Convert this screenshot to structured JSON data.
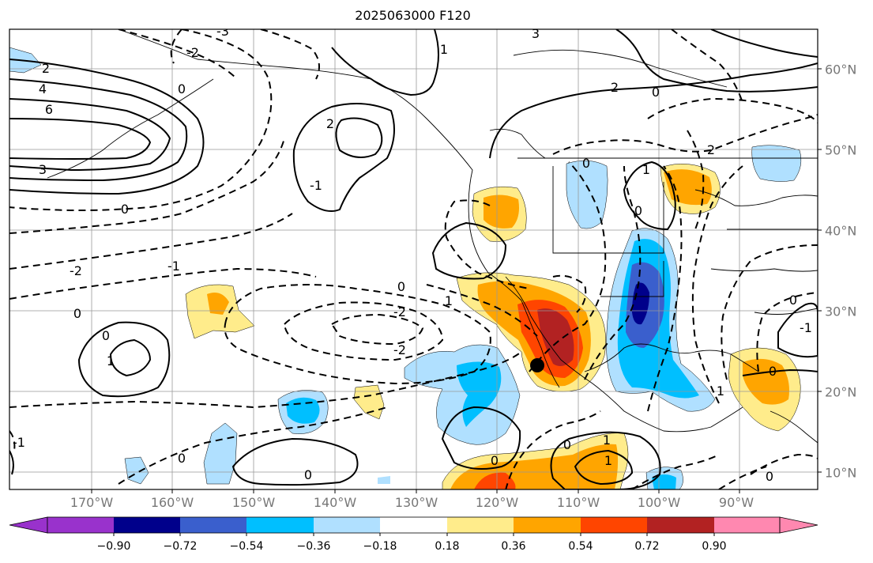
{
  "title": "2025063000 F120",
  "lon_labels": [
    "170°W",
    "160°W",
    "150°W",
    "140°W",
    "130°W",
    "120°W",
    "110°W",
    "100°W",
    "90°W"
  ],
  "lat_labels": [
    "60°N",
    "50°N",
    "40°N",
    "30°N",
    "20°N",
    "10°N"
  ],
  "colorbar": {
    "ticks": [
      "−0.90",
      "−0.72",
      "−0.54",
      "−0.36",
      "−0.18",
      "0.18",
      "0.36",
      "0.54",
      "0.72",
      "0.90"
    ],
    "colors": [
      "#9932cc",
      "#00008b",
      "#3a5fcd",
      "#00bfff",
      "#b0e0ff",
      "#ffffff",
      "#ffec8b",
      "#ffa500",
      "#ff4500",
      "#b22222",
      "#ff88b0"
    ]
  },
  "contour_labels": [
    "2",
    "4",
    "6",
    "3",
    "0",
    "-2",
    "-1",
    "0",
    "1",
    "2",
    "1",
    "0",
    "-3",
    "3",
    "-2",
    "0",
    "2",
    "0",
    "-1",
    "1",
    "0",
    "0",
    "-2",
    "-2",
    "1",
    "0",
    "0",
    "0",
    "1",
    "0",
    "-1",
    "1",
    "0",
    "1",
    "0",
    "0",
    "-1",
    "0",
    "2"
  ],
  "marker": "station-dot"
}
